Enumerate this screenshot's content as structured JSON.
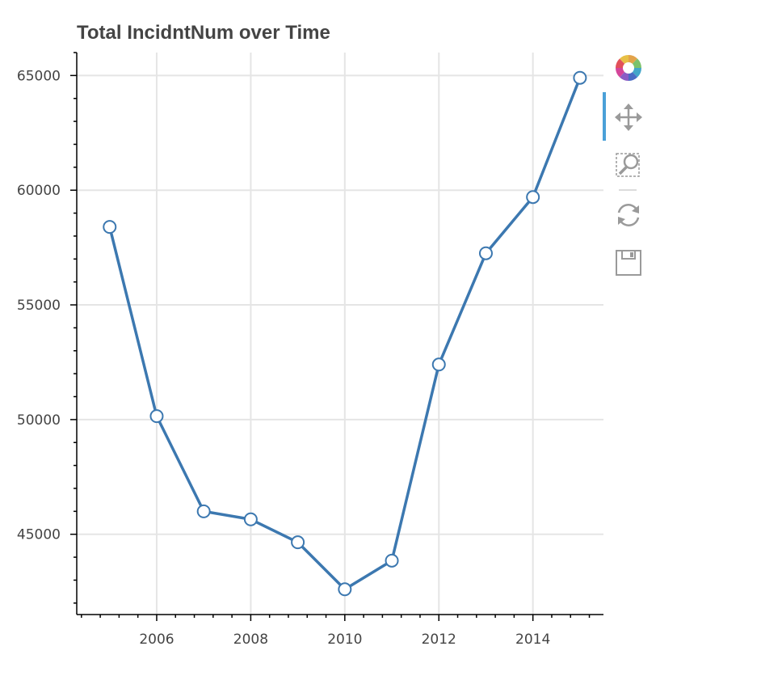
{
  "chart_data": {
    "type": "line",
    "title": "Total IncidntNum over Time",
    "xlabel": "",
    "ylabel": "",
    "x": [
      2005,
      2006,
      2007,
      2008,
      2009,
      2010,
      2011,
      2012,
      2013,
      2014,
      2015
    ],
    "series": [
      {
        "values": [
          58400,
          50150,
          46000,
          45650,
          44650,
          42600,
          43850,
          52400,
          57250,
          59700,
          64900
        ]
      }
    ],
    "xlim": [
      2004.3,
      2015.5
    ],
    "ylim": [
      41500,
      66000
    ],
    "x_ticks": [
      2006,
      2008,
      2010,
      2012,
      2014
    ],
    "y_ticks": [
      45000,
      50000,
      55000,
      60000,
      65000
    ],
    "x_tick_labels": [
      "2006",
      "2008",
      "2010",
      "2012",
      "2014"
    ],
    "y_tick_labels": [
      "45000",
      "50000",
      "55000",
      "60000",
      "65000"
    ],
    "grid": true,
    "legend": "none",
    "line_color": "#3c78b0"
  },
  "toolbar": {
    "tools": [
      {
        "icon": "bokeh-logo-icon",
        "active": false
      },
      {
        "icon": "pan-icon",
        "active": true
      },
      {
        "icon": "box-zoom-icon",
        "active": false
      },
      {
        "icon": "reset-icon",
        "active": false
      },
      {
        "icon": "save-icon",
        "active": false
      }
    ],
    "active_indicator_color": "#4aa0d8"
  }
}
